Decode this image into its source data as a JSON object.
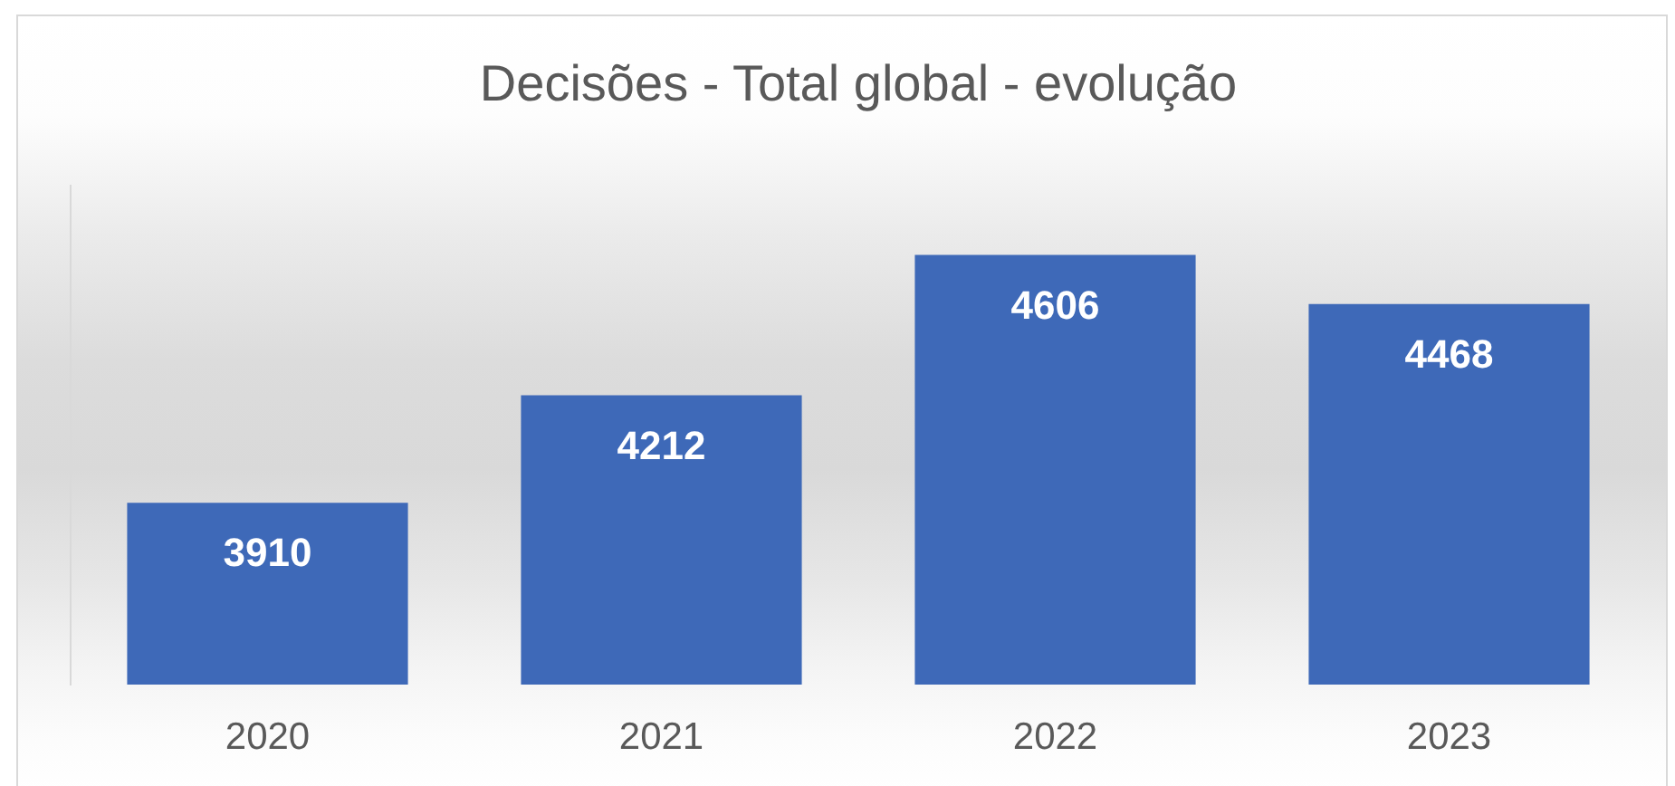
{
  "chart_data": {
    "type": "bar",
    "title": "Decisões - Total global - evolução",
    "categories": [
      "2020",
      "2021",
      "2022",
      "2023"
    ],
    "values": [
      3910,
      4212,
      4606,
      4468
    ],
    "color": "#3e69b8",
    "ylim": [
      3400,
      4800
    ],
    "data_labels": true,
    "tick_labels": "x"
  }
}
